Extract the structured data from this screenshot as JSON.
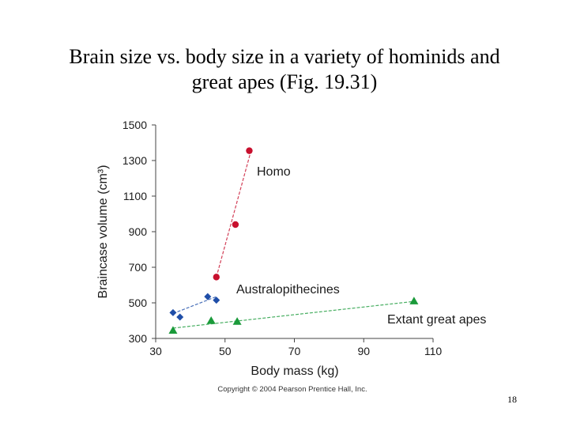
{
  "slide": {
    "title_line1": "Brain size vs. body size in a variety of hominids and",
    "title_line2": "great apes (Fig. 19.31)",
    "page_number": "18"
  },
  "chart_data": {
    "type": "scatter",
    "title": "",
    "xlabel": "Body mass (kg)",
    "ylabel": "Braincase volume (cm³)",
    "xlim": [
      30,
      110
    ],
    "ylim": [
      300,
      1500
    ],
    "xticks": [
      30,
      50,
      70,
      90,
      110
    ],
    "yticks": [
      300,
      500,
      700,
      900,
      1100,
      1300,
      1500
    ],
    "grid": false,
    "copyright": "Copyright © 2004 Pearson Prentice Hall, Inc.",
    "series": [
      {
        "name": "Homo",
        "color": "#c8102e",
        "marker": "circle",
        "points": [
          [
            47.5,
            645
          ],
          [
            53,
            940
          ],
          [
            57,
            1355
          ]
        ],
        "trend": [
          [
            47.5,
            645
          ],
          [
            57.5,
            1355
          ]
        ]
      },
      {
        "name": "Australopithecines",
        "color": "#1f4ea8",
        "marker": "diamond",
        "points": [
          [
            35,
            445
          ],
          [
            37,
            420
          ],
          [
            45,
            535
          ],
          [
            47.5,
            515
          ]
        ],
        "trend": [
          [
            35,
            440
          ],
          [
            47.5,
            535
          ]
        ]
      },
      {
        "name": "Extant great apes",
        "color": "#1a9a3a",
        "marker": "triangle",
        "points": [
          [
            35,
            345
          ],
          [
            46,
            400
          ],
          [
            53.5,
            395
          ],
          [
            104.5,
            510
          ]
        ],
        "trend": [
          [
            35,
            358
          ],
          [
            104.5,
            508
          ]
        ]
      }
    ]
  }
}
